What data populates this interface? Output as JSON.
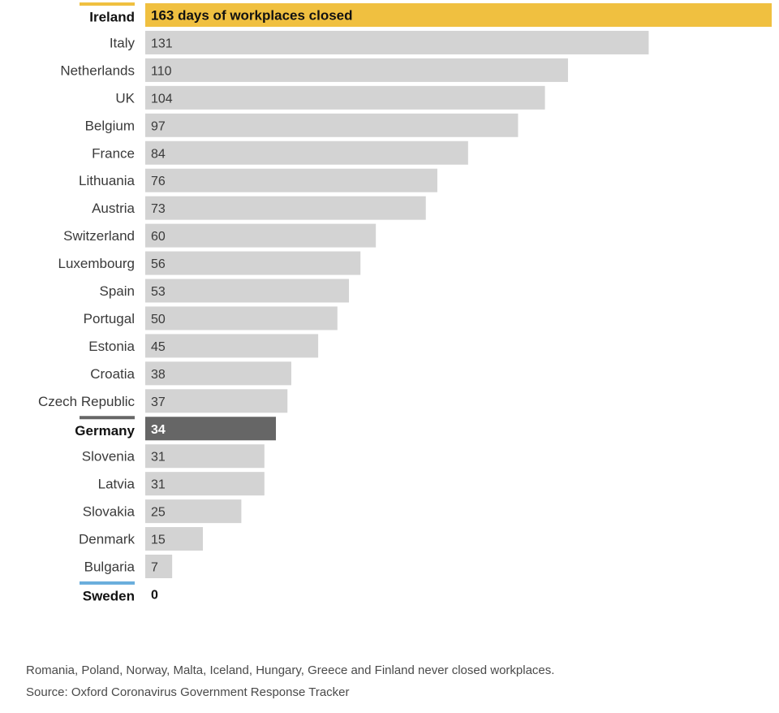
{
  "chart_data": {
    "type": "bar",
    "orientation": "horizontal",
    "categories": [
      "Ireland",
      "Italy",
      "Netherlands",
      "UK",
      "Belgium",
      "France",
      "Lithuania",
      "Austria",
      "Switzerland",
      "Luxembourg",
      "Spain",
      "Portugal",
      "Estonia",
      "Croatia",
      "Czech Republic",
      "Germany",
      "Slovenia",
      "Latvia",
      "Slovakia",
      "Denmark",
      "Bulgaria",
      "Sweden"
    ],
    "values": [
      163,
      131,
      110,
      104,
      97,
      84,
      76,
      73,
      60,
      56,
      53,
      50,
      45,
      38,
      37,
      34,
      31,
      31,
      25,
      15,
      7,
      0
    ],
    "value_labels": [
      "163 days of workplaces closed",
      "131",
      "110",
      "104",
      "97",
      "84",
      "76",
      "73",
      "60",
      "56",
      "53",
      "50",
      "45",
      "38",
      "37",
      "34",
      "31",
      "31",
      "25",
      "15",
      "7",
      "0"
    ],
    "highlights": {
      "Ireland": "#f0c040",
      "Germany": "#666666",
      "Sweden": "#6aaedc"
    },
    "default_color": "#d3d3d3",
    "grid": false,
    "legend": "none"
  },
  "footnote": "Romania, Poland, Norway, Malta, Iceland, Hungary, Greece and Finland never closed workplaces.",
  "source": "Source: Oxford Coronavirus Government Response Tracker"
}
